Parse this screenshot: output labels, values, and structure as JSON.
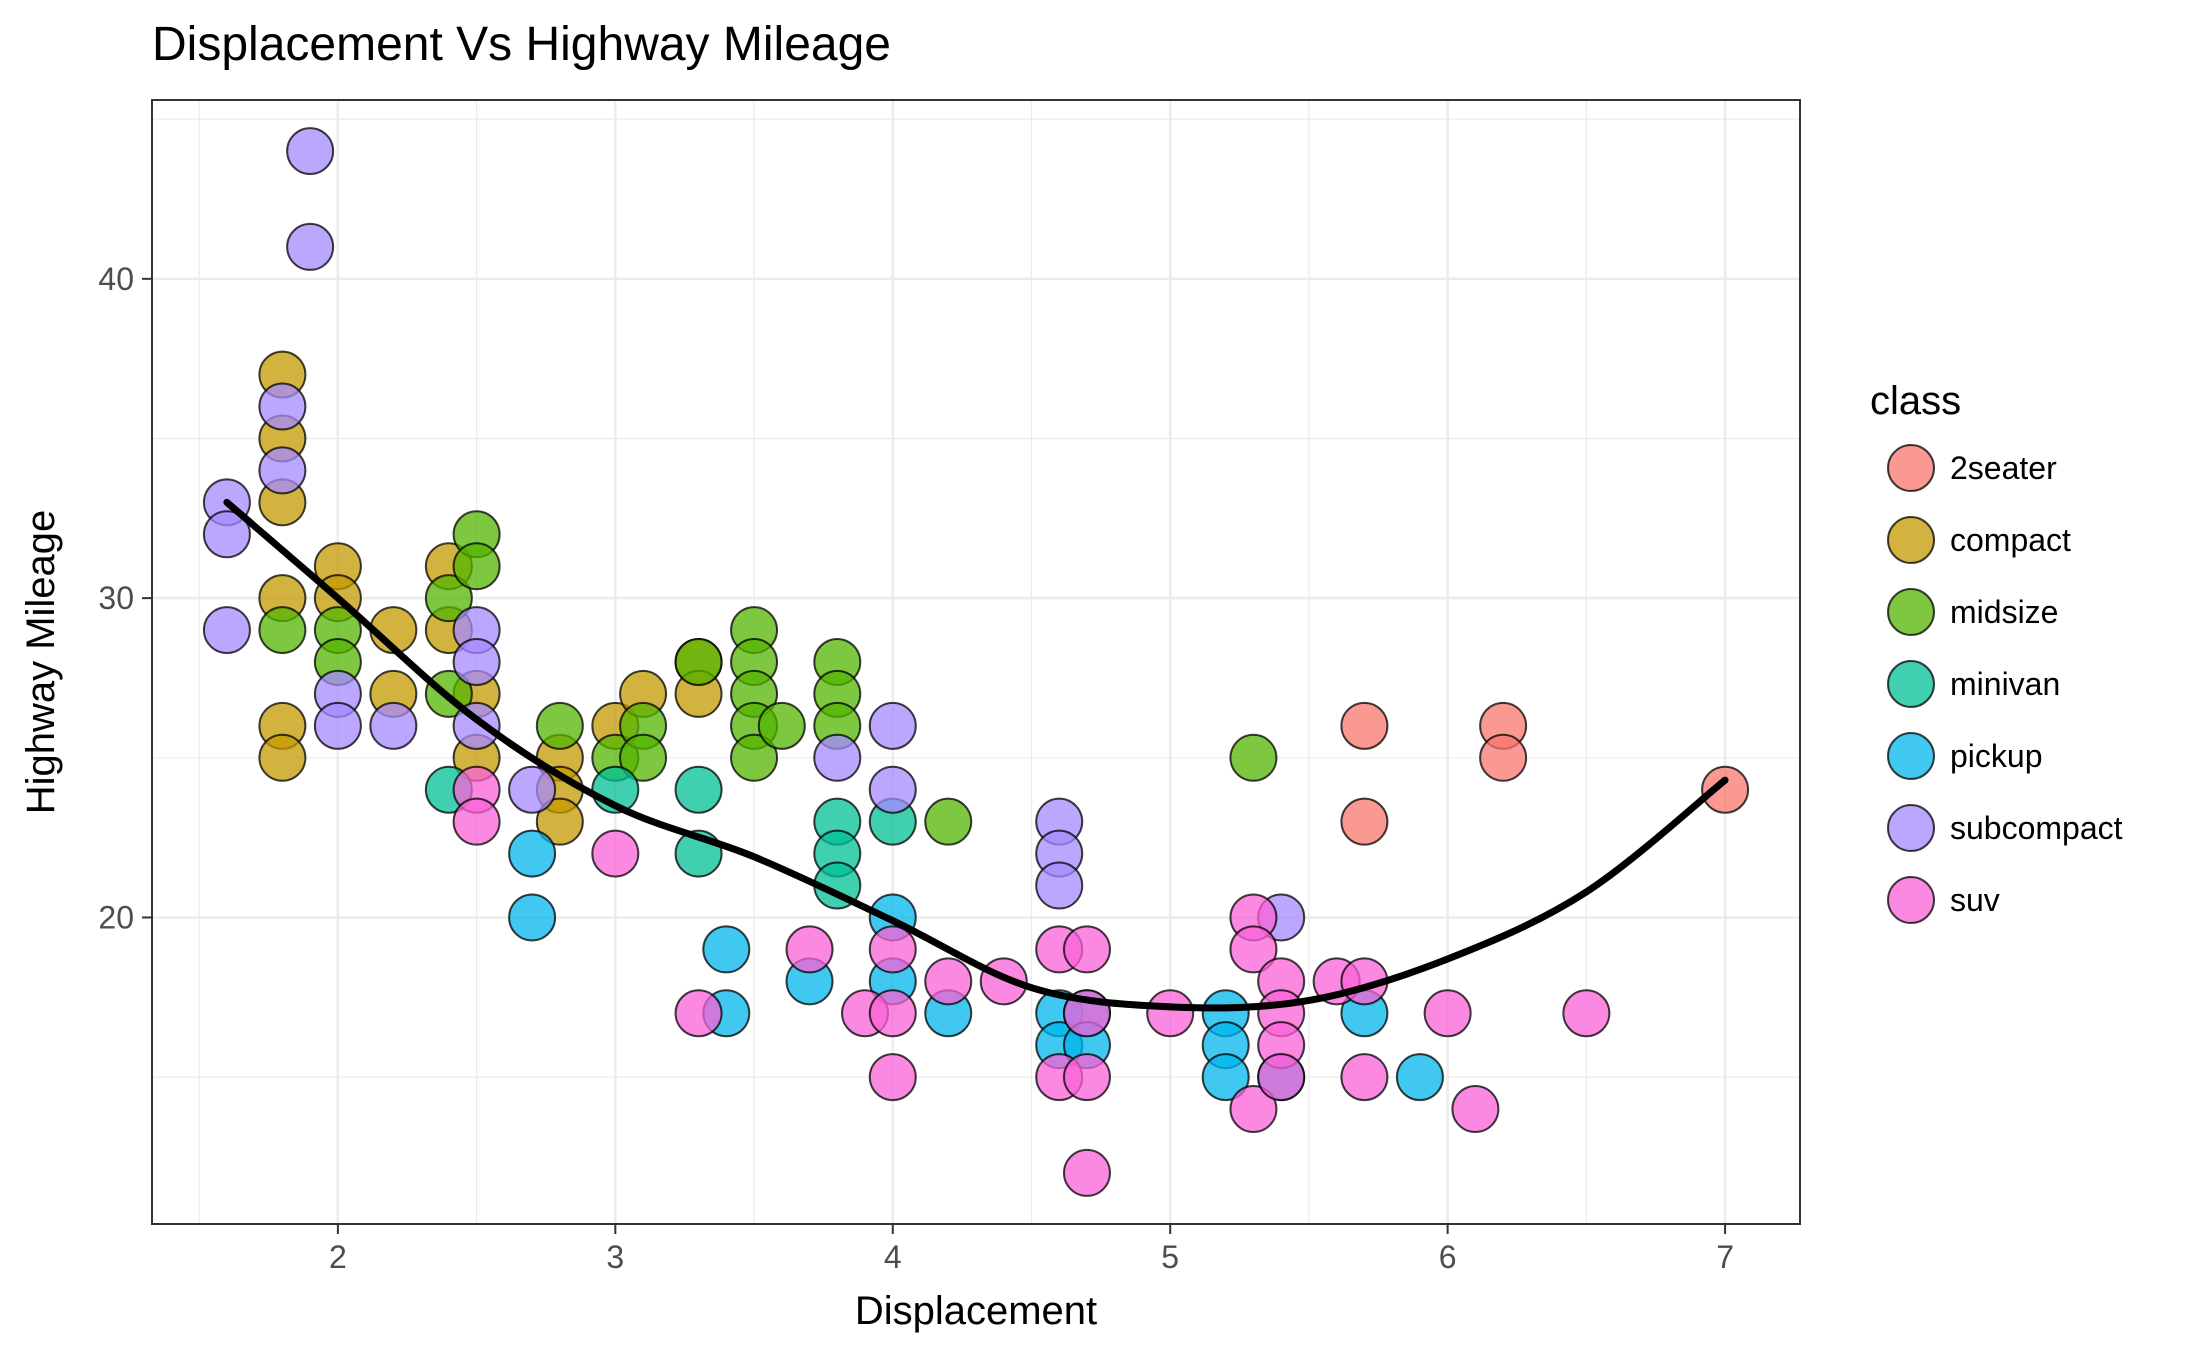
{
  "chart_data": {
    "type": "scatter",
    "title": "Displacement Vs Highway Mileage",
    "xlabel": "Displacement",
    "ylabel": "Highway Mileage",
    "xlim": [
      1.33,
      7.27
    ],
    "ylim": [
      10.4,
      45.6
    ],
    "x_ticks": [
      2,
      3,
      4,
      5,
      6,
      7
    ],
    "y_ticks": [
      20,
      30,
      40
    ],
    "grid": true,
    "legend": {
      "title": "class",
      "position": "right",
      "entries": [
        {
          "label": "2seater",
          "color": "#F8766D"
        },
        {
          "label": "compact",
          "color": "#C49A00"
        },
        {
          "label": "midsize",
          "color": "#53B400"
        },
        {
          "label": "minivan",
          "color": "#00C094"
        },
        {
          "label": "pickup",
          "color": "#00B6EB"
        },
        {
          "label": "subcompact",
          "color": "#A58AFF"
        },
        {
          "label": "suv",
          "color": "#FB61D7"
        }
      ]
    },
    "smooth_line": {
      "x": [
        1.6,
        2.0,
        2.5,
        3.0,
        3.5,
        4.0,
        4.5,
        5.0,
        5.5,
        6.0,
        6.5,
        7.0
      ],
      "y": [
        33.0,
        30.0,
        26.2,
        23.5,
        21.9,
        19.9,
        17.8,
        17.2,
        17.4,
        18.7,
        20.8,
        24.3
      ]
    },
    "series": [
      {
        "name": "2seater",
        "x": [
          5.7,
          5.7,
          6.2,
          6.2,
          7.0
        ],
        "y": [
          26,
          23,
          26,
          25,
          24
        ]
      },
      {
        "name": "compact",
        "x": [
          1.8,
          1.8,
          1.8,
          1.8,
          1.8,
          1.8,
          2.0,
          2.0,
          2.2,
          2.2,
          2.4,
          2.4,
          2.5,
          2.5,
          2.8,
          2.8,
          2.8,
          3.0,
          3.1,
          3.3,
          3.3
        ],
        "y": [
          37,
          35,
          33,
          30,
          26,
          25,
          31,
          30,
          29,
          27,
          31,
          29,
          27,
          25,
          25,
          24,
          23,
          26,
          27,
          28,
          27
        ]
      },
      {
        "name": "midsize",
        "x": [
          1.8,
          2.0,
          2.0,
          2.4,
          2.4,
          2.5,
          2.5,
          2.8,
          3.0,
          3.1,
          3.1,
          3.3,
          3.5,
          3.5,
          3.5,
          3.5,
          3.5,
          3.6,
          3.8,
          3.8,
          3.8,
          4.2,
          5.3
        ],
        "y": [
          29,
          29,
          28,
          30,
          27,
          32,
          31,
          26,
          25,
          26,
          25,
          28,
          29,
          28,
          27,
          26,
          25,
          26,
          28,
          27,
          26,
          23,
          25
        ]
      },
      {
        "name": "minivan",
        "x": [
          2.4,
          3.0,
          3.3,
          3.3,
          3.8,
          3.8,
          3.8,
          4.0
        ],
        "y": [
          24,
          24,
          24,
          22,
          23,
          22,
          21,
          23
        ]
      },
      {
        "name": "pickup",
        "x": [
          2.7,
          2.7,
          3.4,
          3.4,
          3.7,
          4.0,
          4.0,
          4.2,
          4.6,
          4.6,
          4.7,
          4.7,
          5.2,
          5.2,
          5.2,
          5.4,
          5.7,
          5.9
        ],
        "y": [
          22,
          20,
          19,
          17,
          18,
          20,
          18,
          17,
          17,
          16,
          17,
          16,
          17,
          16,
          15,
          15,
          17,
          15
        ]
      },
      {
        "name": "subcompact",
        "x": [
          1.6,
          1.6,
          1.6,
          1.8,
          1.8,
          1.9,
          1.9,
          2.0,
          2.0,
          2.2,
          2.5,
          2.5,
          2.5,
          2.7,
          3.8,
          4.0,
          4.0,
          4.6,
          4.6,
          4.6,
          5.4
        ],
        "y": [
          33,
          32,
          29,
          36,
          34,
          44,
          41,
          27,
          26,
          26,
          29,
          28,
          26,
          24,
          25,
          26,
          24,
          23,
          22,
          21,
          20
        ]
      },
      {
        "name": "suv",
        "x": [
          2.5,
          2.5,
          3.0,
          3.3,
          3.7,
          3.9,
          4.0,
          4.0,
          4.0,
          4.2,
          4.4,
          4.6,
          4.6,
          4.7,
          4.7,
          4.7,
          4.7,
          5.0,
          5.3,
          5.3,
          5.3,
          5.4,
          5.4,
          5.4,
          5.4,
          5.6,
          5.7,
          5.7,
          6.0,
          6.1,
          6.5
        ],
        "y": [
          24,
          23,
          22,
          17,
          19,
          17,
          19,
          17,
          15,
          18,
          18,
          19,
          15,
          19,
          17,
          15,
          12,
          17,
          20,
          19,
          14,
          18,
          17,
          16,
          15,
          18,
          18,
          15,
          17,
          14,
          17
        ]
      }
    ]
  }
}
